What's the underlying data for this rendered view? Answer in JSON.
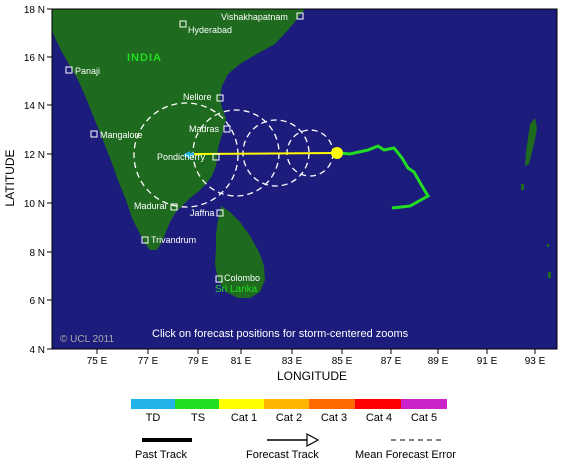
{
  "map": {
    "axis_x_label": "LONGITUDE",
    "axis_y_label": "LATITUDE",
    "lat_ticks": [
      "18 N",
      "16 N",
      "14 N",
      "12 N",
      "10 N",
      "8 N",
      "6 N",
      "4 N"
    ],
    "lon_ticks": [
      "75 E",
      "77 E",
      "79 E",
      "81 E",
      "83 E",
      "85 E",
      "87 E",
      "89 E",
      "91 E",
      "93 E"
    ],
    "country_label": "INDIA",
    "copyright": "© UCL 2011",
    "instruction": "Click on forecast positions for storm-centered zooms",
    "cities": [
      {
        "name": "Vishakhapatnam"
      },
      {
        "name": "Hyderabad"
      },
      {
        "name": "Panaji"
      },
      {
        "name": "Nellore"
      },
      {
        "name": "Mangalore"
      },
      {
        "name": "Madras"
      },
      {
        "name": "Pondicherry"
      },
      {
        "name": "Madurai"
      },
      {
        "name": "Jaffna"
      },
      {
        "name": "Trivandrum"
      },
      {
        "name": "Colombo"
      },
      {
        "name": "Sri Lanka"
      }
    ]
  },
  "legend": {
    "categories": [
      {
        "label": "TD",
        "color": "#22b4e8"
      },
      {
        "label": "TS",
        "color": "#22dd22"
      },
      {
        "label": "Cat 1",
        "color": "#ffff00"
      },
      {
        "label": "Cat 2",
        "color": "#ffb400"
      },
      {
        "label": "Cat 3",
        "color": "#ff6a00"
      },
      {
        "label": "Cat 4",
        "color": "#ff0000"
      },
      {
        "label": "Cat 5",
        "color": "#cc22cc"
      }
    ],
    "past_track": "Past Track",
    "forecast_track": "Forecast Track",
    "mean_error": "Mean Forecast Error"
  },
  "colors": {
    "ocean": "#1c1c7c",
    "land": "#1e6a1e",
    "past_track": "#22dd22",
    "forecast_track": "#ffff00",
    "error_circle": "#ffffff"
  }
}
